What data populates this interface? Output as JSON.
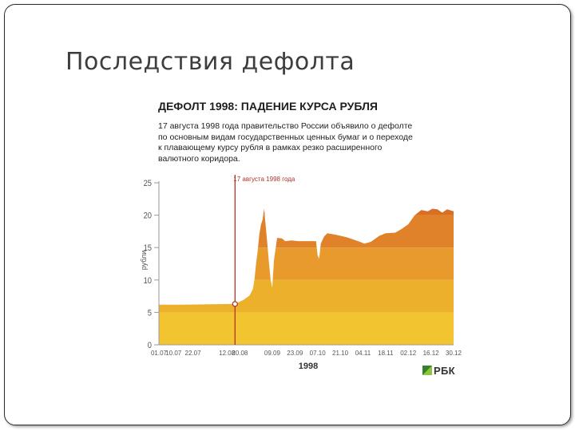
{
  "slide": {
    "title": "Последствия дефолта"
  },
  "chart_header": {
    "title": "ДЕФОЛТ 1998: ПАДЕНИЕ КУРСА РУБЛЯ",
    "description_lines": [
      "17 августа 1998 года правительство России объявило о дефолте",
      "по основным видам государственных ценных бумаг и о переходе",
      "к плавающему курсу рубля в рамках резко расширенного",
      "валютного коридора."
    ]
  },
  "brand": {
    "name": "РБК"
  },
  "colors": {
    "band_0_5": "#f2c530",
    "band_5_10": "#ecb02b",
    "band_10_15": "#e89b2c",
    "band_15_20": "#e0822a",
    "band_20_25": "#d86f24",
    "marker_line": "#b23227",
    "grid": "#d6d6d6",
    "axis_text": "#555555"
  },
  "chart_data": {
    "type": "area",
    "ylabel": "рубли",
    "xlabel": "1998",
    "ylim": [
      0,
      25
    ],
    "yticks": [
      0,
      5,
      10,
      15,
      20,
      25
    ],
    "x_day_range": [
      0,
      166
    ],
    "x_ticks": [
      {
        "label": "01.07",
        "day": 0
      },
      {
        "label": "10.07",
        "day": 9
      },
      {
        "label": "22.07",
        "day": 21
      },
      {
        "label": "12.08",
        "day": 42
      },
      {
        "label": "20.08",
        "day": 50
      },
      {
        "label": "09.09",
        "day": 70
      },
      {
        "label": "23.09",
        "day": 84
      },
      {
        "label": "07.10",
        "day": 98
      },
      {
        "label": "21.10",
        "day": 112
      },
      {
        "label": "04.11",
        "day": 126
      },
      {
        "label": "18.11",
        "day": 140
      },
      {
        "label": "02.12",
        "day": 154
      },
      {
        "label": "16.12",
        "day": 168
      },
      {
        "label": "30.12",
        "day": 182
      }
    ],
    "bands": [
      0,
      5,
      10,
      15,
      20,
      25
    ],
    "annotation": {
      "label": "17 августа 1998 года",
      "day": 47,
      "value": 6.3
    },
    "series": [
      {
        "points": [
          [
            "01.07.1998",
            6.2
          ],
          [
            "15.07.1998",
            6.2
          ],
          [
            "01.08.1998",
            6.25
          ],
          [
            "17.08.1998",
            6.3
          ],
          [
            "22.08.1998",
            6.9
          ],
          [
            "26.08.1998",
            7.6
          ],
          [
            "28.08.1998",
            8.6
          ],
          [
            "29.08.1998",
            10.0
          ],
          [
            "30.08.1998",
            12.5
          ],
          [
            "31.08.1998",
            14.5
          ],
          [
            "01.09.1998",
            17.0
          ],
          [
            "02.09.1998",
            18.5
          ],
          [
            "03.09.1998",
            19.3
          ],
          [
            "04.09.1998",
            21.0
          ],
          [
            "05.09.1998",
            18.2
          ],
          [
            "06.09.1998",
            15.5
          ],
          [
            "07.09.1998",
            12.5
          ],
          [
            "08.09.1998",
            10.0
          ],
          [
            "09.09.1998",
            8.8
          ],
          [
            "10.09.1998",
            13.0
          ],
          [
            "12.09.1998",
            16.5
          ],
          [
            "15.09.1998",
            16.4
          ],
          [
            "17.09.1998",
            16.0
          ],
          [
            "21.09.1998",
            16.1
          ],
          [
            "25.09.1998",
            16.0
          ],
          [
            "01.10.1998",
            16.0
          ],
          [
            "06.10.1998",
            16.0
          ],
          [
            "07.10.1998",
            13.8
          ],
          [
            "08.10.1998",
            13.3
          ],
          [
            "09.10.1998",
            15.6
          ],
          [
            "11.10.1998",
            16.7
          ],
          [
            "13.10.1998",
            17.2
          ],
          [
            "18.10.1998",
            17.0
          ],
          [
            "25.10.1998",
            16.6
          ],
          [
            "01.11.1998",
            16.0
          ],
          [
            "05.11.1998",
            15.6
          ],
          [
            "09.11.1998",
            15.9
          ],
          [
            "14.11.1998",
            16.8
          ],
          [
            "18.11.1998",
            17.2
          ],
          [
            "24.11.1998",
            17.3
          ],
          [
            "28.11.1998",
            17.9
          ],
          [
            "02.12.1998",
            18.6
          ],
          [
            "06.12.1998",
            20.0
          ],
          [
            "10.12.1998",
            20.8
          ],
          [
            "14.12.1998",
            20.6
          ],
          [
            "17.12.1998",
            21.0
          ],
          [
            "20.12.1998",
            20.9
          ],
          [
            "23.12.1998",
            20.4
          ],
          [
            "26.12.1998",
            20.9
          ],
          [
            "30.12.1998",
            20.6
          ]
        ]
      }
    ]
  }
}
